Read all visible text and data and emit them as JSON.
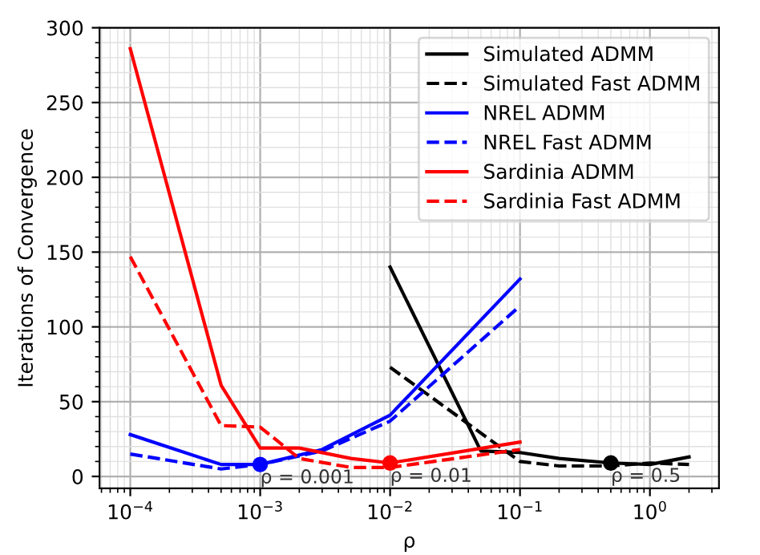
{
  "chart_data": {
    "type": "line",
    "xlabel": "ρ",
    "ylabel": "Iterations of Convergence",
    "log": "x",
    "grid": true,
    "legend": "top right",
    "xlim": [
      5.8e-05,
      3.4
    ],
    "ylim": [
      -8,
      300
    ],
    "xticks": [
      {
        "value": 0.0001,
        "label": "10$^{−4}$"
      },
      {
        "value": 0.001,
        "label": "10$^{−3}$"
      },
      {
        "value": 0.01,
        "label": "10$^{−2}$"
      },
      {
        "value": 0.1,
        "label": "10$^{−1}$"
      },
      {
        "value": 1,
        "label": "10$^{0}$"
      }
    ],
    "yticks": [
      0,
      50,
      100,
      150,
      200,
      250,
      300
    ],
    "series": [
      {
        "name": "Simulated ADMM",
        "color": "#000000",
        "line_style": "solid",
        "x": [
          0.01,
          0.05,
          0.1,
          0.2,
          0.5,
          1,
          2
        ],
        "values": [
          140,
          17,
          16,
          12,
          9,
          8,
          13
        ]
      },
      {
        "name": "Simulated Fast ADMM",
        "color": "#000000",
        "line_style": "dashed",
        "x": [
          0.01,
          0.1,
          0.2,
          0.5,
          1,
          2
        ],
        "values": [
          73,
          10,
          7,
          7,
          9,
          8
        ]
      },
      {
        "name": "NREL ADMM",
        "color": "#0000ff",
        "line_style": "solid",
        "x": [
          0.0001,
          0.0005,
          0.001,
          0.003,
          0.01,
          0.1
        ],
        "values": [
          28,
          8,
          8,
          18,
          41,
          132
        ]
      },
      {
        "name": "NREL Fast ADMM",
        "color": "#0000ff",
        "line_style": "dashed",
        "x": [
          0.0001,
          0.0005,
          0.001,
          0.003,
          0.01,
          0.1
        ],
        "values": [
          15,
          5,
          8,
          17,
          37,
          114
        ]
      },
      {
        "name": "Sardinia ADMM",
        "color": "#ff0000",
        "line_style": "solid",
        "x": [
          0.0001,
          0.0005,
          0.001,
          0.002,
          0.005,
          0.01,
          0.1
        ],
        "values": [
          286,
          61,
          19,
          19,
          12,
          9,
          23
        ]
      },
      {
        "name": "Sardinia Fast ADMM",
        "color": "#ff0000",
        "line_style": "dashed",
        "x": [
          0.0001,
          0.0005,
          0.001,
          0.002,
          0.005,
          0.01,
          0.1
        ],
        "values": [
          147,
          34,
          33,
          12,
          6,
          6,
          18
        ]
      },
      {
        "type": "scatter",
        "marker": "circle",
        "color": "#0000ff",
        "x": [
          0.001
        ],
        "values": [
          8
        ]
      },
      {
        "type": "scatter",
        "marker": "circle",
        "color": "#ff0000",
        "x": [
          0.01
        ],
        "values": [
          9
        ]
      },
      {
        "type": "scatter",
        "marker": "circle",
        "color": "#000000",
        "x": [
          0.5
        ],
        "values": [
          9
        ]
      }
    ],
    "annotations": [
      {
        "text": "ρ = 0.001",
        "x": 0.001,
        "y": 8
      },
      {
        "text": "ρ = 0.01",
        "x": 0.01,
        "y": 9
      },
      {
        "text": "ρ = 0.5",
        "x": 0.5,
        "y": 9
      }
    ]
  }
}
